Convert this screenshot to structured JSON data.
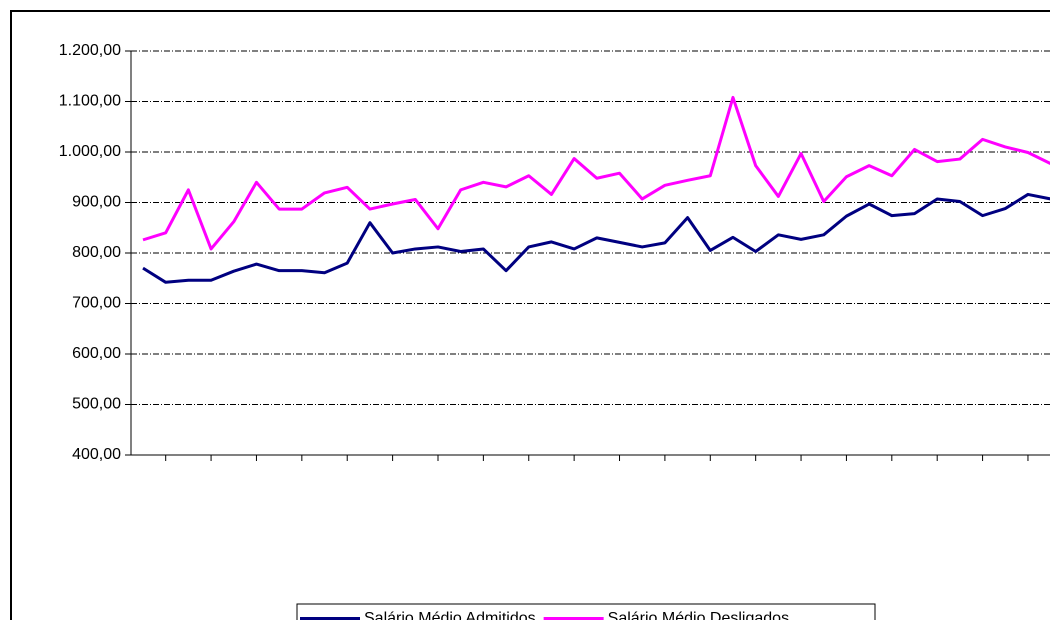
{
  "chart_data": {
    "type": "line",
    "categories": [
      null,
      null,
      null,
      null,
      null,
      null,
      null,
      null,
      null,
      null,
      null,
      null,
      null,
      null,
      null,
      null,
      null,
      null,
      null,
      null,
      null,
      null,
      null,
      null,
      null,
      null,
      null,
      null,
      null,
      null,
      null,
      null,
      null,
      null,
      null,
      null,
      null,
      null,
      null,
      null,
      null
    ],
    "series": [
      {
        "name": "Salário Médio Admitidos",
        "color": "#000080",
        "values": [
          770,
          742,
          746,
          746,
          764,
          778,
          765,
          765,
          761,
          780,
          860,
          800,
          808,
          812,
          803,
          808,
          765,
          812,
          822,
          808,
          830,
          821,
          812,
          820,
          870,
          805,
          831,
          803,
          836,
          827,
          836,
          873,
          897,
          874,
          878,
          907,
          902,
          874,
          888,
          916,
          907
        ]
      },
      {
        "name": "Salário Médio Desligados",
        "color": "#ff00ff",
        "values": [
          826,
          840,
          925,
          808,
          862,
          940,
          887,
          887,
          919,
          930,
          887,
          897,
          906,
          848,
          925,
          940,
          931,
          953,
          916,
          987,
          948,
          958,
          907,
          934,
          944,
          953,
          1108,
          973,
          912,
          997,
          902,
          951,
          973,
          953,
          1005,
          981,
          986,
          1025,
          1010,
          999,
          977
        ]
      }
    ],
    "ylim": [
      400,
      1200
    ],
    "yticks": [
      {
        "value": 400,
        "label": "400,00"
      },
      {
        "value": 500,
        "label": "500,00"
      },
      {
        "value": 600,
        "label": "600,00"
      },
      {
        "value": 700,
        "label": "700,00"
      },
      {
        "value": 800,
        "label": "800,00"
      },
      {
        "value": 900,
        "label": "900,00"
      },
      {
        "value": 1000,
        "label": "1.000,00"
      },
      {
        "value": 1100,
        "label": "1.100,00"
      },
      {
        "value": 1200,
        "label": "1.200,00"
      }
    ],
    "grid": true,
    "legend": "bottom"
  }
}
